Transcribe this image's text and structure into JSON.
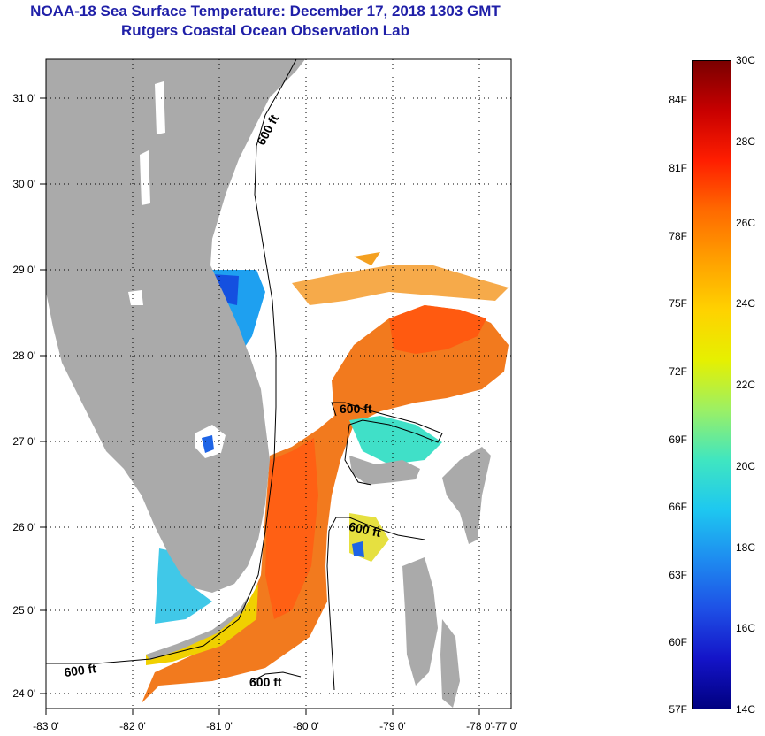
{
  "header": {
    "title": "NOAA-18 Sea Surface Temperature:  December 17, 2018 1303 GMT",
    "subtitle": "Rutgers Coastal Ocean Observation Lab"
  },
  "map": {
    "lat_labels": [
      "31 0'",
      "30 0'",
      "29 0'",
      "28 0'",
      "27 0'",
      "26 0'",
      "25 0'",
      "24 0'"
    ],
    "lon_labels": [
      "-83 0'",
      "-82 0'",
      "-81 0'",
      "-80 0'",
      "-79 0'",
      "-78 0'",
      "-77 0'"
    ],
    "contour_label": "600 ft",
    "contour_labels": [
      "600 ft",
      "600 ft",
      "600 ft",
      "600 ft"
    ],
    "land_color": "#aaaaaa",
    "cloud_color": "#ffffff"
  },
  "colorbar": {
    "fahrenheit_labels": [
      "84F",
      "81F",
      "78F",
      "75F",
      "72F",
      "69F",
      "66F",
      "63F",
      "60F",
      "57F"
    ],
    "celsius_labels": [
      "30C",
      "28C",
      "26C",
      "24C",
      "22C",
      "20C",
      "18C",
      "16C",
      "14C"
    ],
    "stops": [
      "#7a0000",
      "#c80000",
      "#ff1e00",
      "#ff6a00",
      "#ffa000",
      "#ffd200",
      "#e6f000",
      "#9cf064",
      "#40e6c0",
      "#1ec8f0",
      "#1e8cf0",
      "#1e50e6",
      "#1414c8",
      "#000080"
    ]
  }
}
